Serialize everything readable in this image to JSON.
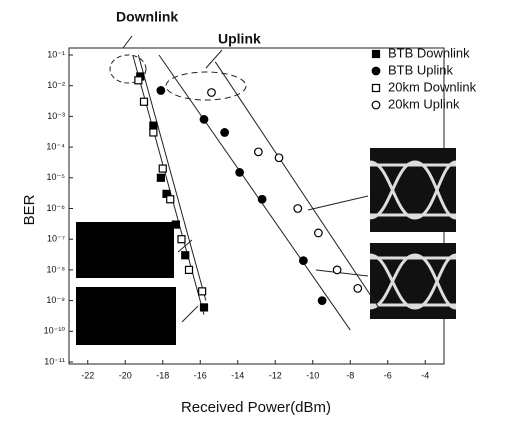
{
  "chart_data": {
    "type": "scatter",
    "xlabel": "Received Power(dBm)",
    "ylabel": "BER",
    "xlim": [
      -23,
      -3
    ],
    "xticks": [
      -22,
      -20,
      -18,
      -16,
      -14,
      -12,
      -10,
      -8,
      -6,
      -4
    ],
    "ylim": [
      1e-11,
      0.1
    ],
    "yscale": "log",
    "yticks": [
      {
        "value": 1e-11,
        "label": "10⁻¹¹"
      },
      {
        "value": 1e-10,
        "label": "10⁻¹⁰"
      },
      {
        "value": 1e-09,
        "label": "10⁻⁹"
      },
      {
        "value": 1e-08,
        "label": "10⁻⁸"
      },
      {
        "value": 1e-07,
        "label": "10⁻⁷"
      },
      {
        "value": 1e-06,
        "label": "10⁻⁶"
      },
      {
        "value": 1e-05,
        "label": "10⁻⁵"
      },
      {
        "value": 0.0001,
        "label": "10⁻⁴"
      },
      {
        "value": 0.001,
        "label": "10⁻³"
      },
      {
        "value": 0.01,
        "label": "10⁻²"
      },
      {
        "value": 0.1,
        "label": "10⁻¹"
      }
    ],
    "annotations": [
      "Downlink",
      "Uplink"
    ],
    "series": [
      {
        "name": "BTB Downlink",
        "marker": "square",
        "filled": true,
        "color": "#000000",
        "x": [
          -19.2,
          -18.5,
          -18.1,
          -17.8,
          -17.3,
          -16.8,
          -15.8
        ],
        "values": [
          0.02,
          0.0005,
          1e-05,
          3e-06,
          3e-07,
          3e-08,
          6e-10
        ]
      },
      {
        "name": "BTB Uplink",
        "marker": "circle",
        "filled": true,
        "color": "#000000",
        "x": [
          -18.1,
          -15.8,
          -14.7,
          -13.9,
          -12.7,
          -10.5,
          -9.5
        ],
        "values": [
          0.007,
          0.0008,
          0.0003,
          1.5e-05,
          2e-06,
          2e-08,
          1e-09
        ]
      },
      {
        "name": "20km Downlink",
        "marker": "square",
        "filled": false,
        "color": "#000000",
        "x": [
          -19.3,
          -19.0,
          -18.5,
          -18.0,
          -17.6,
          -17.0,
          -16.6,
          -15.9
        ],
        "values": [
          0.015,
          0.003,
          0.0003,
          2e-05,
          2e-06,
          1e-07,
          1e-08,
          2e-09
        ]
      },
      {
        "name": "20km Uplink",
        "marker": "circle",
        "filled": false,
        "color": "#000000",
        "x": [
          -15.4,
          -12.9,
          -11.8,
          -10.8,
          -9.7,
          -8.7,
          -7.6
        ],
        "values": [
          0.006,
          7e-05,
          4.5e-05,
          1e-06,
          1.6e-07,
          1e-08,
          2.5e-09
        ]
      }
    ],
    "fit_lines": [
      {
        "x": [
          -19.6,
          -15.8
        ],
        "values": [
          0.1,
          3.5e-10
        ]
      },
      {
        "x": [
          -19.3,
          -15.7
        ],
        "values": [
          0.1,
          1e-09
        ]
      },
      {
        "x": [
          -18.2,
          -8.0
        ],
        "values": [
          0.1,
          1.1e-10
        ]
      },
      {
        "x": [
          -15.2,
          -6.4
        ],
        "values": [
          0.06,
          5e-10
        ]
      }
    ]
  }
}
